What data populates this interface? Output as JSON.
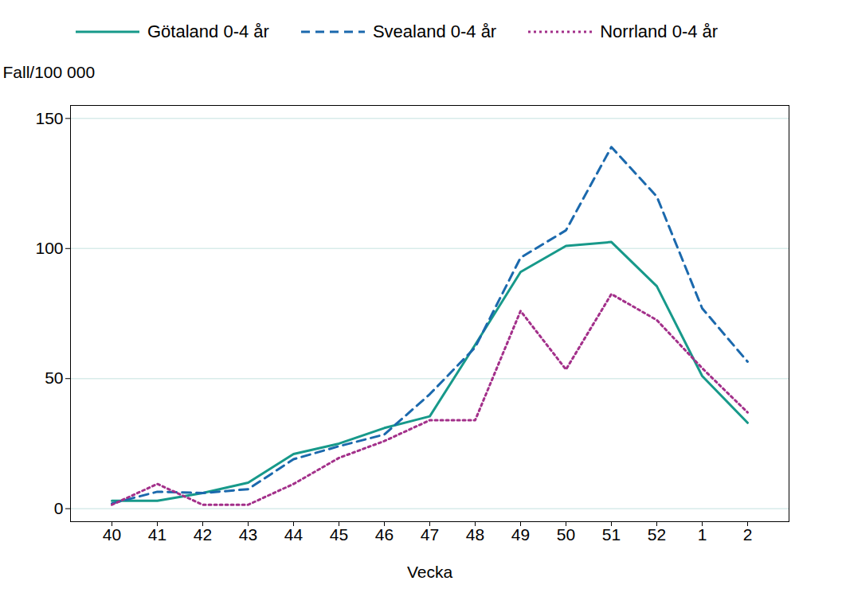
{
  "chart_data": {
    "type": "line",
    "x_label": "Vecka",
    "y_label": "Fall/100 000",
    "categories": [
      "40",
      "41",
      "42",
      "43",
      "44",
      "45",
      "46",
      "47",
      "48",
      "49",
      "50",
      "51",
      "52",
      "1",
      "2"
    ],
    "series": [
      {
        "name": "Götaland 0-4 år",
        "color": "#17998a",
        "line_style": "solid",
        "values": [
          3,
          3,
          6,
          10,
          21,
          25,
          31,
          35.5,
          63,
          91,
          101,
          102.5,
          85.5,
          51,
          33
        ]
      },
      {
        "name": "Svealand 0-4 år",
        "color": "#1b69ad",
        "line_style": "dashed",
        "values": [
          2,
          6.5,
          6,
          7.5,
          19,
          24,
          28.5,
          44,
          62,
          96.5,
          107,
          139,
          120,
          77,
          56.5
        ]
      },
      {
        "name": "Norrland 0-4 år",
        "color": "#a3308a",
        "line_style": "dotted",
        "values": [
          1.5,
          9.5,
          1.5,
          1.5,
          9.5,
          19.5,
          26,
          34,
          34,
          76,
          53.5,
          82.5,
          72.5,
          54,
          37
        ]
      }
    ],
    "ylim": [
      -5,
      155
    ],
    "yticks": [
      0,
      50,
      100,
      150
    ],
    "grid": true,
    "legend": "top"
  }
}
